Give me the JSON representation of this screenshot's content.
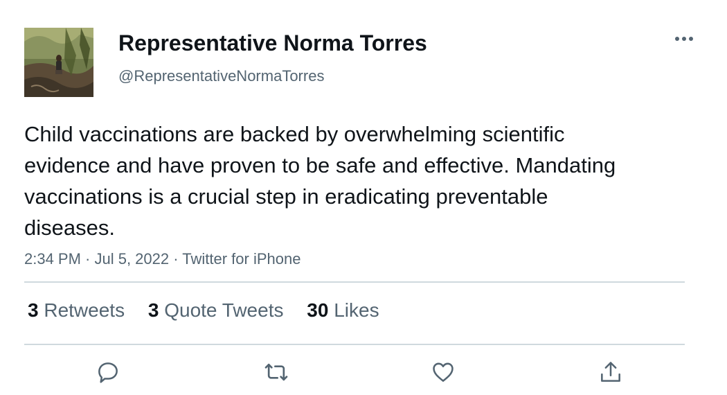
{
  "tweet": {
    "author_name": "Representative Norma Torres",
    "author_handle": "@RepresentativeNormaTorres",
    "text": "Child vaccinations are backed by overwhelming scientific evidence and have proven to be safe and effective. Mandating vaccinations is a crucial step in eradicating preventable diseases.",
    "timestamp": "2:34 PM · Jul 5, 2022 · Twitter for iPhone"
  },
  "stats": [
    {
      "count": "3",
      "label": "Retweets"
    },
    {
      "count": "3",
      "label": "Quote Tweets"
    },
    {
      "count": "30",
      "label": "Likes"
    }
  ],
  "actions": [
    {
      "icon": "reply-icon"
    },
    {
      "icon": "retweet-icon"
    },
    {
      "icon": "like-icon"
    },
    {
      "icon": "share-icon"
    }
  ],
  "colors": {
    "primary_text": "#0f1419",
    "secondary_text": "#536471",
    "divider": "#cfd9de"
  }
}
